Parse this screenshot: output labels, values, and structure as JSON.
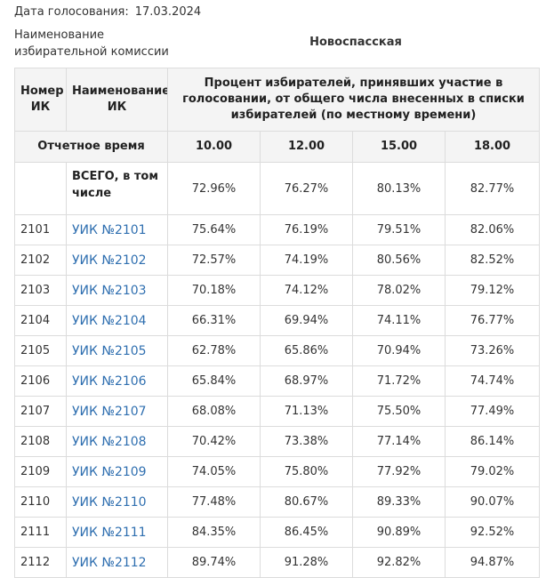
{
  "header": {
    "vote_date_label": "Дата голосования:",
    "vote_date_value": "17.03.2024",
    "commission_label_line1": "Наименование",
    "commission_label_line2": "избирательной комиссии",
    "commission_name": "Новоспасская"
  },
  "table": {
    "col_number": "Номер ИК",
    "col_name": "Наименование ИК",
    "col_percent_group": "Процент избирателей, принявших участие в голосовании, от общего числа внесенных в списки избирателей (по местному времени)",
    "report_time_label": "Отчетное время",
    "times": [
      "10.00",
      "12.00",
      "15.00",
      "18.00"
    ],
    "total": {
      "label": "ВСЕГО, в том числе",
      "values": [
        "72.96%",
        "76.27%",
        "80.13%",
        "82.77%"
      ]
    },
    "rows": [
      {
        "num": "2101",
        "name": "УИК №2101",
        "values": [
          "75.64%",
          "76.19%",
          "79.51%",
          "82.06%"
        ]
      },
      {
        "num": "2102",
        "name": "УИК №2102",
        "values": [
          "72.57%",
          "74.19%",
          "80.56%",
          "82.52%"
        ]
      },
      {
        "num": "2103",
        "name": "УИК №2103",
        "values": [
          "70.18%",
          "74.12%",
          "78.02%",
          "79.12%"
        ]
      },
      {
        "num": "2104",
        "name": "УИК №2104",
        "values": [
          "66.31%",
          "69.94%",
          "74.11%",
          "76.77%"
        ]
      },
      {
        "num": "2105",
        "name": "УИК №2105",
        "values": [
          "62.78%",
          "65.86%",
          "70.94%",
          "73.26%"
        ]
      },
      {
        "num": "2106",
        "name": "УИК №2106",
        "values": [
          "65.84%",
          "68.97%",
          "71.72%",
          "74.74%"
        ]
      },
      {
        "num": "2107",
        "name": "УИК №2107",
        "values": [
          "68.08%",
          "71.13%",
          "75.50%",
          "77.49%"
        ]
      },
      {
        "num": "2108",
        "name": "УИК №2108",
        "values": [
          "70.42%",
          "73.38%",
          "77.14%",
          "86.14%"
        ]
      },
      {
        "num": "2109",
        "name": "УИК №2109",
        "values": [
          "74.05%",
          "75.80%",
          "77.92%",
          "79.02%"
        ]
      },
      {
        "num": "2110",
        "name": "УИК №2110",
        "values": [
          "77.48%",
          "80.67%",
          "89.33%",
          "90.07%"
        ]
      },
      {
        "num": "2111",
        "name": "УИК №2111",
        "values": [
          "84.35%",
          "86.45%",
          "90.89%",
          "92.52%"
        ]
      },
      {
        "num": "2112",
        "name": "УИК №2112",
        "values": [
          "89.74%",
          "91.28%",
          "92.82%",
          "94.87%"
        ]
      }
    ]
  },
  "colors": {
    "link": "#2f6fb0",
    "header_bg": "#f4f4f4",
    "border": "#dcdcdc"
  }
}
